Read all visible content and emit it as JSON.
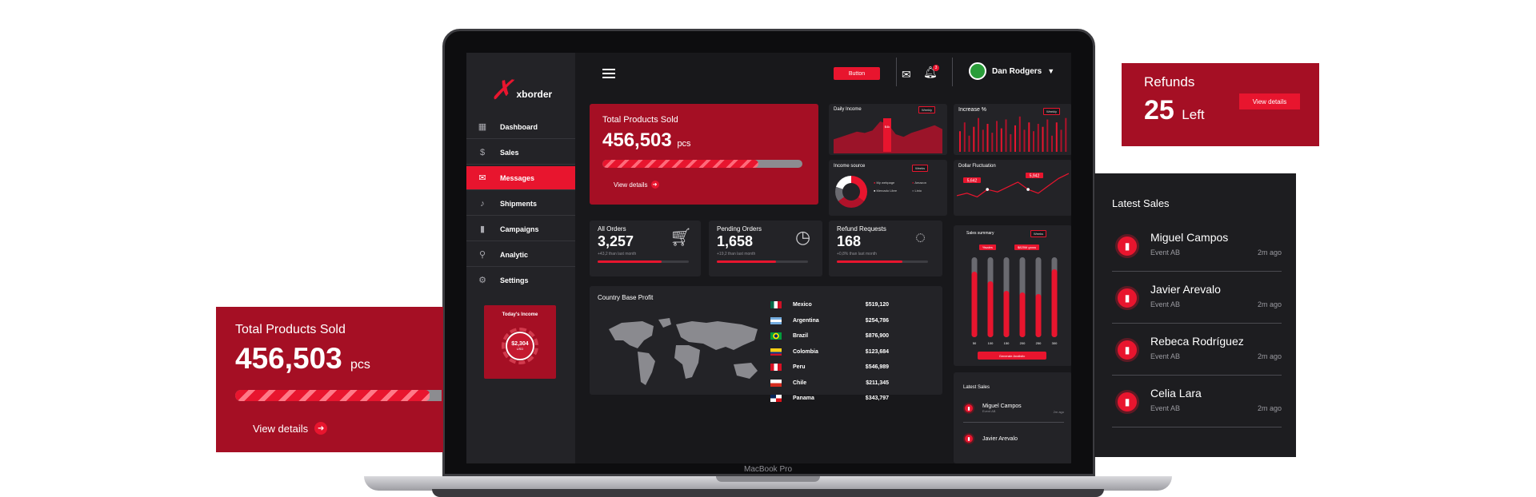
{
  "device_label": "MacBook Pro",
  "sidebar": {
    "brand": "xborder",
    "items": [
      {
        "label": "Dashboard",
        "icon": "building-icon",
        "active": false
      },
      {
        "label": "Sales",
        "icon": "dollar-icon",
        "active": false
      },
      {
        "label": "Messages",
        "icon": "envelope-icon",
        "active": true
      },
      {
        "label": "Shipments",
        "icon": "bell-icon",
        "active": false
      },
      {
        "label": "Campaigns",
        "icon": "bar-chart-icon",
        "active": false
      },
      {
        "label": "Analytic",
        "icon": "search-icon",
        "active": false
      },
      {
        "label": "Settings",
        "icon": "gear-icon",
        "active": false
      }
    ],
    "income": {
      "title": "Today's Income",
      "value": "$2,304",
      "unit": "USD"
    }
  },
  "topbar": {
    "button_label": "Button",
    "notification_count": "3",
    "user_name": "Dan Rodgers"
  },
  "total_products": {
    "title": "Total Products Sold",
    "value": "456,503",
    "unit": "pcs",
    "progress": 0.78,
    "link": "View details"
  },
  "daily_income": {
    "title": "Daily Income",
    "select": "Weekly",
    "marker": "$4k",
    "values": [
      22,
      26,
      30,
      34,
      32,
      36,
      50,
      46,
      30,
      26,
      32,
      36,
      40,
      44,
      38
    ]
  },
  "increase": {
    "title": "Increase %",
    "select": "Weekly",
    "values": [
      28,
      40,
      22,
      34,
      46,
      30,
      38,
      26,
      42,
      32,
      44,
      24,
      36,
      48,
      30,
      40,
      28,
      38,
      34,
      44,
      22,
      40,
      30,
      46
    ]
  },
  "income_source": {
    "title": "Income source",
    "select": "Weeks",
    "legend": [
      "My webpage",
      "Amazon",
      "Mercado Libre",
      "Linio"
    ],
    "colors": [
      "#e8152e",
      "#b0122a",
      "#ffffff",
      "#6a6a70"
    ]
  },
  "dollar_fluctuation": {
    "title": "Dollar Fluctuation",
    "labels": [
      "5,642",
      "5,942"
    ],
    "values": [
      30,
      34,
      28,
      40,
      36,
      44,
      52,
      40,
      34,
      46,
      58,
      66
    ]
  },
  "stats": [
    {
      "label": "All Orders",
      "value": "3,257",
      "sub": "+43,2 than last month",
      "progress": 0.7,
      "icon": "cart-icon"
    },
    {
      "label": "Pending Orders",
      "value": "1,658",
      "sub": "+19,2 than last month",
      "progress": 0.65,
      "icon": "clock-icon"
    },
    {
      "label": "Refund Requests",
      "value": "168",
      "sub": "+0,8% than last month",
      "progress": 0.72,
      "icon": "refresh-icon"
    }
  ],
  "country_profit": {
    "title": "Country Base Profit",
    "rows": [
      {
        "country": "Mexico",
        "value": "$519,120",
        "flag": "mx"
      },
      {
        "country": "Argentina",
        "value": "$254,786",
        "flag": "ar"
      },
      {
        "country": "Brazil",
        "value": "$876,900",
        "flag": "br"
      },
      {
        "country": "Colombia",
        "value": "$123,684",
        "flag": "co"
      },
      {
        "country": "Peru",
        "value": "$546,989",
        "flag": "pe"
      },
      {
        "country": "Chile",
        "value": "$211,345",
        "flag": "cl"
      },
      {
        "country": "Panama",
        "value": "$343,797",
        "flag": "pa"
      }
    ]
  },
  "sales_summary": {
    "title": "Sales summary",
    "select": "Weeks",
    "tags": [
      "%sales",
      "$825M gross"
    ],
    "labels": [
      "50",
      "100",
      "150",
      "200",
      "250",
      "300"
    ],
    "values": [
      0.82,
      0.7,
      0.58,
      0.56,
      0.54,
      0.85
    ],
    "button": "Generate Analistic"
  },
  "latest_sales_mini": {
    "title": "Latest Sales",
    "items": [
      {
        "name": "Miguel Campos",
        "sub": "Event AB",
        "time": "2m ago"
      },
      {
        "name": "Javier Arevalo",
        "sub": "Event AB",
        "time": "2m ago"
      }
    ]
  },
  "refunds": {
    "title": "Refunds",
    "value": "25",
    "unit": "Left",
    "button": "View details"
  },
  "float_tps": {
    "title": "Total Products Sold",
    "value": "456,503",
    "unit": "pcs",
    "progress": 0.94,
    "link": "View details"
  },
  "latest_sales": {
    "title": "Latest Sales",
    "items": [
      {
        "name": "Miguel Campos",
        "sub": "Event AB",
        "time": "2m ago"
      },
      {
        "name": "Javier Arevalo",
        "sub": "Event AB",
        "time": "2m ago"
      },
      {
        "name": "Rebeca Rodríguez",
        "sub": "Event AB",
        "time": "2m ago"
      },
      {
        "name": "Celia Lara",
        "sub": "Event AB",
        "time": "2m ago"
      }
    ]
  }
}
